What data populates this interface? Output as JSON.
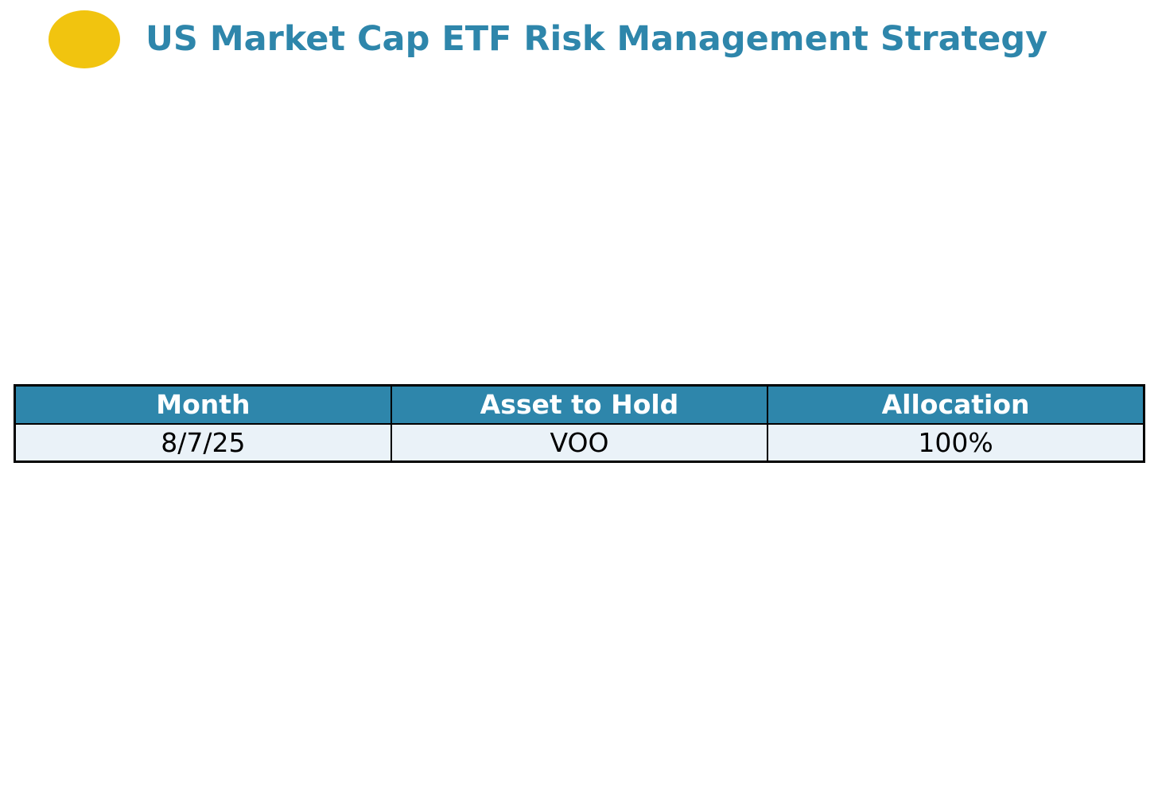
{
  "header": {
    "title": "US Market Cap ETF Risk Management Strategy",
    "logo_icon": "yellow-ellipse"
  },
  "theme": {
    "accent": "#2E86AB",
    "logo": "#F1C40F",
    "row_bg": "#EAF2F8",
    "border": "#000000",
    "header_text": "#FFFFFF",
    "page_bg": "#FFFFFF"
  },
  "table": {
    "columns": [
      "Month",
      "Asset to Hold",
      "Allocation"
    ],
    "rows": [
      [
        "8/7/25",
        "VOO",
        "100%"
      ]
    ]
  },
  "chart_data": {
    "type": "table",
    "title": "US Market Cap ETF Risk Management Strategy",
    "columns": [
      "Month",
      "Asset to Hold",
      "Allocation"
    ],
    "rows": [
      [
        "8/7/25",
        "VOO",
        "100%"
      ]
    ],
    "layout_hints": {
      "header_bg": "#2E86AB",
      "header_text_color": "#FFFFFF",
      "row_bg": "#EAF2F8",
      "grid": true,
      "column_widths": "equal-thirds",
      "text_align": "center"
    }
  }
}
